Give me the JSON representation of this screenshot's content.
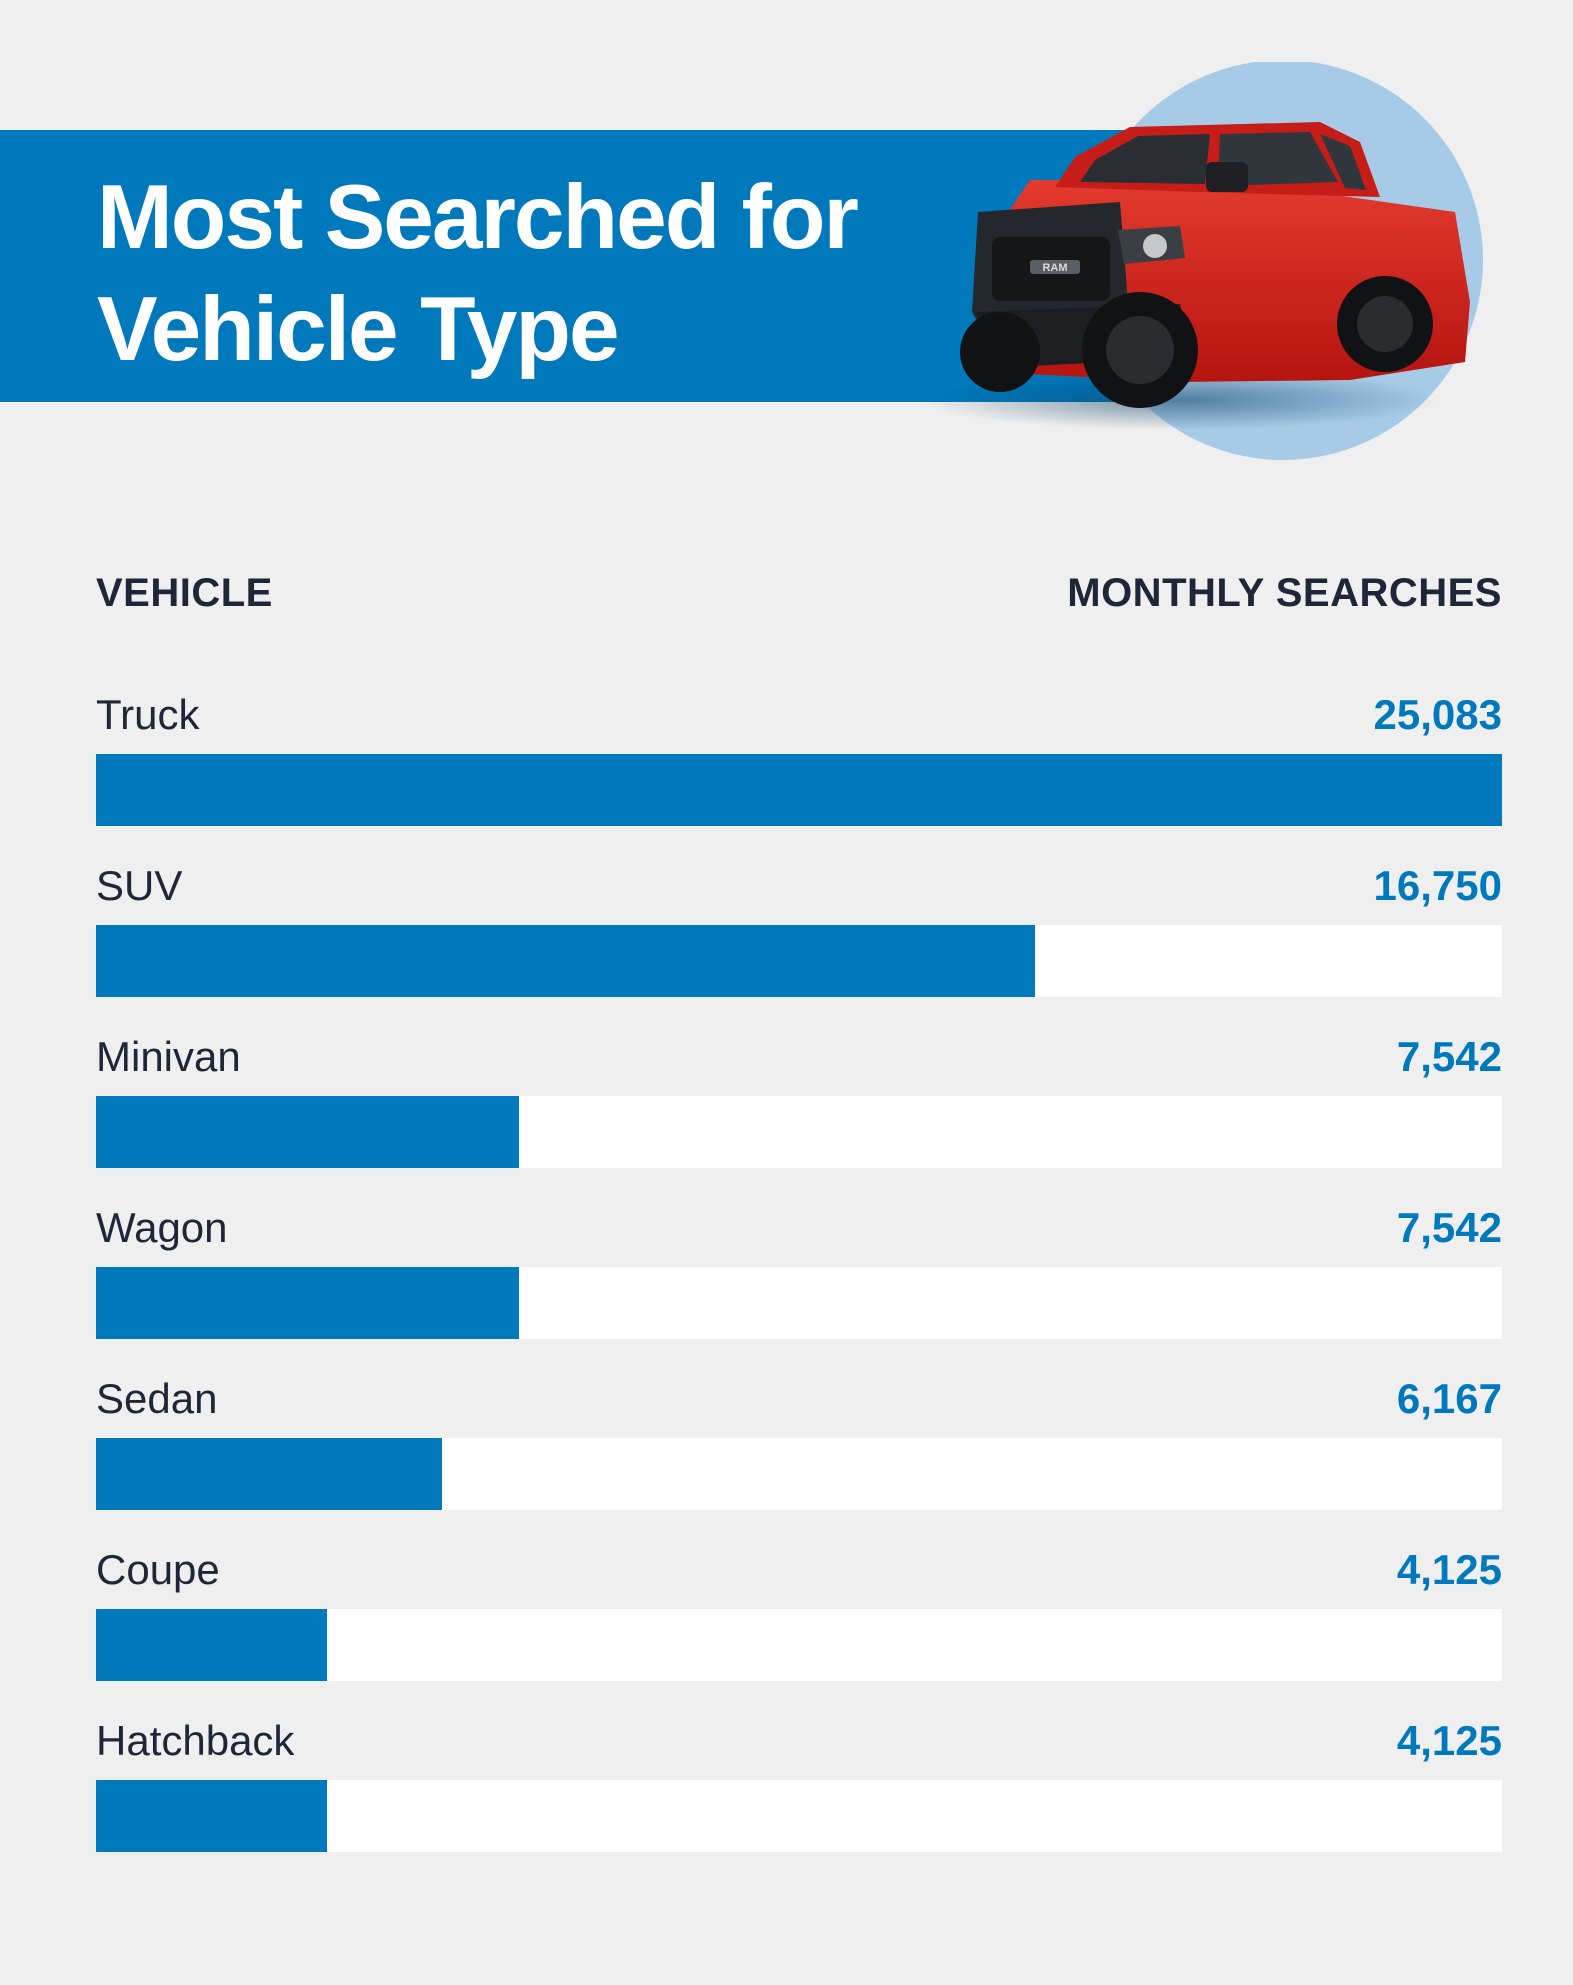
{
  "title": {
    "line1": "Most Searched for",
    "line2": "Vehicle Type"
  },
  "hero_image": {
    "description": "red-pickup-truck",
    "circle_color": "#a7cbe6",
    "truck_color": "#d7211e",
    "grille_text": "RAM"
  },
  "colors": {
    "accent": "#0079bc",
    "text_dark": "#1d2737",
    "background": "#efefef",
    "track": "#ffffff"
  },
  "chart_data": {
    "type": "bar",
    "orientation": "horizontal",
    "title": "Most Searched for Vehicle Type",
    "category_header": "VEHICLE",
    "value_header": "MONTHLY SEARCHES",
    "xlim": [
      0,
      25083
    ],
    "categories": [
      "Truck",
      "SUV",
      "Minivan",
      "Wagon",
      "Sedan",
      "Coupe",
      "Hatchback"
    ],
    "values": [
      25083,
      16750,
      7542,
      7542,
      6167,
      4125,
      4125
    ],
    "value_labels": [
      "25,083",
      "16,750",
      "7,542",
      "7,542",
      "6,167",
      "4,125",
      "4,125"
    ]
  }
}
